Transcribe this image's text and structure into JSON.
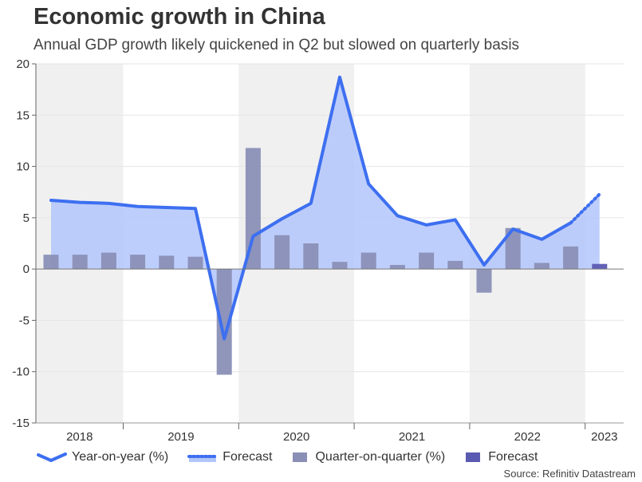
{
  "title": "Economic growth in China",
  "subtitle": "Annual GDP growth likely quickened in Q2 but slowed on quarterly basis",
  "source": "Source: Refinitiv Datastream",
  "legend": {
    "yoy": "Year-on-year (%)",
    "yoy_forecast": "Forecast",
    "qoq": "Quarter-on-quarter (%)",
    "qoq_forecast": "Forecast"
  },
  "colors": {
    "yoy_line": "#3d6ff0",
    "yoy_area": "#b3c6fb",
    "qoq_bar": "#8a8fb6",
    "qoq_forecast_bar": "#5b5ab3",
    "band": "#f0f0f0"
  },
  "chart_data": {
    "type": "line",
    "title": "Economic growth in China",
    "subtitle": "Annual GDP growth likely quickened in Q2 but slowed on quarterly basis",
    "ylim": [
      -15,
      20
    ],
    "yticks": [
      -15,
      -10,
      -5,
      0,
      5,
      10,
      15,
      20
    ],
    "year_labels": [
      "2018",
      "2019",
      "2020",
      "2021",
      "2022",
      "2023"
    ],
    "x": [
      "2018 Q2",
      "2018 Q3",
      "2018 Q4",
      "2019 Q1",
      "2019 Q2",
      "2019 Q3",
      "2019 Q4",
      "2020 Q1",
      "2020 Q2",
      "2020 Q3",
      "2020 Q4",
      "2021 Q1",
      "2021 Q2",
      "2021 Q3",
      "2021 Q4",
      "2022 Q1",
      "2022 Q2",
      "2022 Q3",
      "2022 Q4",
      "2023 Q1",
      "2023 Q2"
    ],
    "series": [
      {
        "name": "Year-on-year (%)",
        "type": "area-line",
        "values": [
          6.7,
          6.5,
          6.4,
          6.1,
          6.0,
          5.9,
          -6.8,
          3.2,
          4.9,
          6.4,
          18.7,
          8.3,
          5.2,
          4.3,
          4.8,
          0.4,
          3.9,
          2.9,
          4.5,
          null,
          null
        ]
      },
      {
        "name": "Forecast",
        "type": "dotted-line",
        "values": [
          null,
          null,
          null,
          null,
          null,
          null,
          null,
          null,
          null,
          null,
          null,
          null,
          null,
          null,
          null,
          null,
          null,
          null,
          4.5,
          7.3,
          null
        ]
      },
      {
        "name": "Quarter-on-quarter (%)",
        "type": "bar",
        "values": [
          1.4,
          1.4,
          1.6,
          1.4,
          1.3,
          1.2,
          -10.3,
          11.8,
          3.3,
          2.5,
          0.7,
          1.6,
          0.4,
          1.6,
          0.8,
          -2.3,
          4.0,
          0.6,
          2.2,
          null,
          null
        ]
      },
      {
        "name": "Forecast",
        "type": "bar",
        "values": [
          null,
          null,
          null,
          null,
          null,
          null,
          null,
          null,
          null,
          null,
          null,
          null,
          null,
          null,
          null,
          null,
          null,
          null,
          null,
          0.5,
          null
        ]
      }
    ],
    "grid": true,
    "legend_position": "bottom"
  }
}
